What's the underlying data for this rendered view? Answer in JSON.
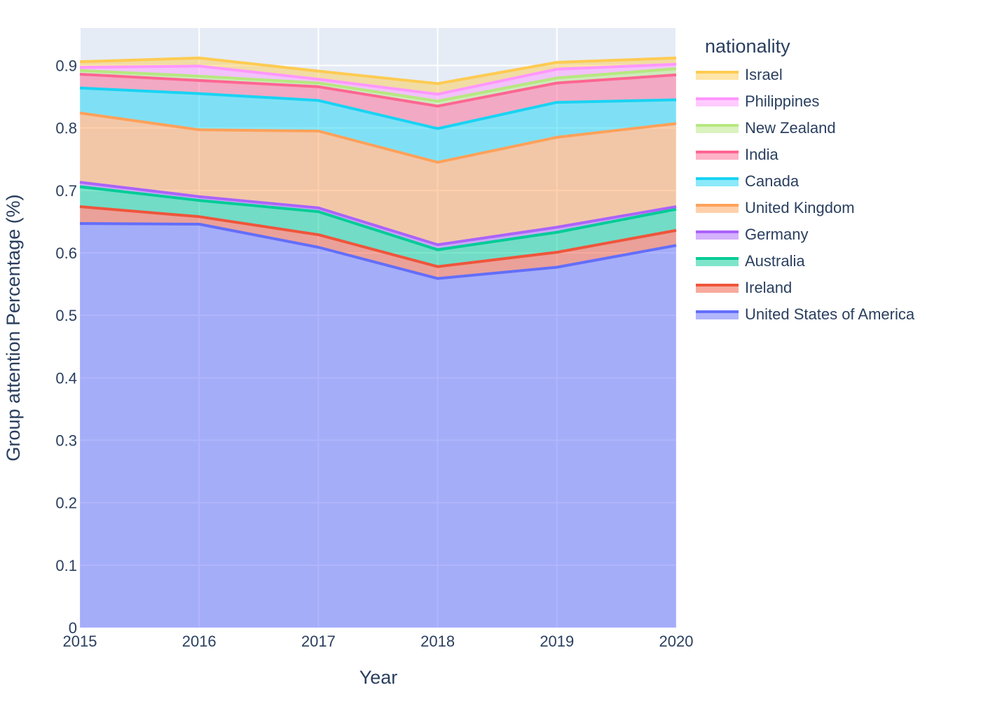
{
  "chart_data": {
    "type": "area",
    "stacked": true,
    "xlabel": "Year",
    "ylabel": "Group attention Percentage (%)",
    "xlim": [
      2015,
      2020
    ],
    "ylim": [
      0,
      0.96
    ],
    "x": [
      2015,
      2016,
      2017,
      2018,
      2019,
      2020
    ],
    "x_ticks": [
      "2015",
      "2016",
      "2017",
      "2018",
      "2019",
      "2020"
    ],
    "y_ticks": [
      {
        "value": 0,
        "label": "0"
      },
      {
        "value": 0.1,
        "label": "0.1"
      },
      {
        "value": 0.2,
        "label": "0.2"
      },
      {
        "value": 0.3,
        "label": "0.3"
      },
      {
        "value": 0.4,
        "label": "0.4"
      },
      {
        "value": 0.5,
        "label": "0.5"
      },
      {
        "value": 0.6,
        "label": "0.6"
      },
      {
        "value": 0.7,
        "label": "0.7"
      },
      {
        "value": 0.8,
        "label": "0.8"
      },
      {
        "value": 0.9,
        "label": "0.9"
      }
    ],
    "grid": true,
    "legend": {
      "title": "nationality",
      "placement": "right"
    },
    "series": [
      {
        "name": "United States of America",
        "color": "#636efa",
        "values": [
          0.647,
          0.646,
          0.609,
          0.559,
          0.577,
          0.612
        ]
      },
      {
        "name": "Ireland",
        "color": "#EF553B",
        "values": [
          0.027,
          0.012,
          0.02,
          0.019,
          0.024,
          0.024
        ]
      },
      {
        "name": "Australia",
        "color": "#00cc96",
        "values": [
          0.032,
          0.026,
          0.037,
          0.027,
          0.032,
          0.034
        ]
      },
      {
        "name": "Germany",
        "color": "#ab63fa",
        "values": [
          0.007,
          0.006,
          0.006,
          0.008,
          0.008,
          0.004
        ]
      },
      {
        "name": "United Kingdom",
        "color": "#FFA15A",
        "values": [
          0.111,
          0.107,
          0.123,
          0.132,
          0.144,
          0.133
        ]
      },
      {
        "name": "Canada",
        "color": "#19d3f3",
        "values": [
          0.04,
          0.058,
          0.049,
          0.054,
          0.056,
          0.038
        ]
      },
      {
        "name": "India",
        "color": "#FF6692",
        "values": [
          0.022,
          0.021,
          0.022,
          0.036,
          0.031,
          0.04
        ]
      },
      {
        "name": "New Zealand",
        "color": "#B6E880",
        "values": [
          0.006,
          0.007,
          0.006,
          0.008,
          0.008,
          0.01
        ]
      },
      {
        "name": "Philippines",
        "color": "#FF97FF",
        "values": [
          0.005,
          0.016,
          0.006,
          0.011,
          0.014,
          0.007
        ]
      },
      {
        "name": "Israel",
        "color": "#FECB52",
        "values": [
          0.009,
          0.013,
          0.013,
          0.017,
          0.011,
          0.01
        ]
      }
    ]
  }
}
